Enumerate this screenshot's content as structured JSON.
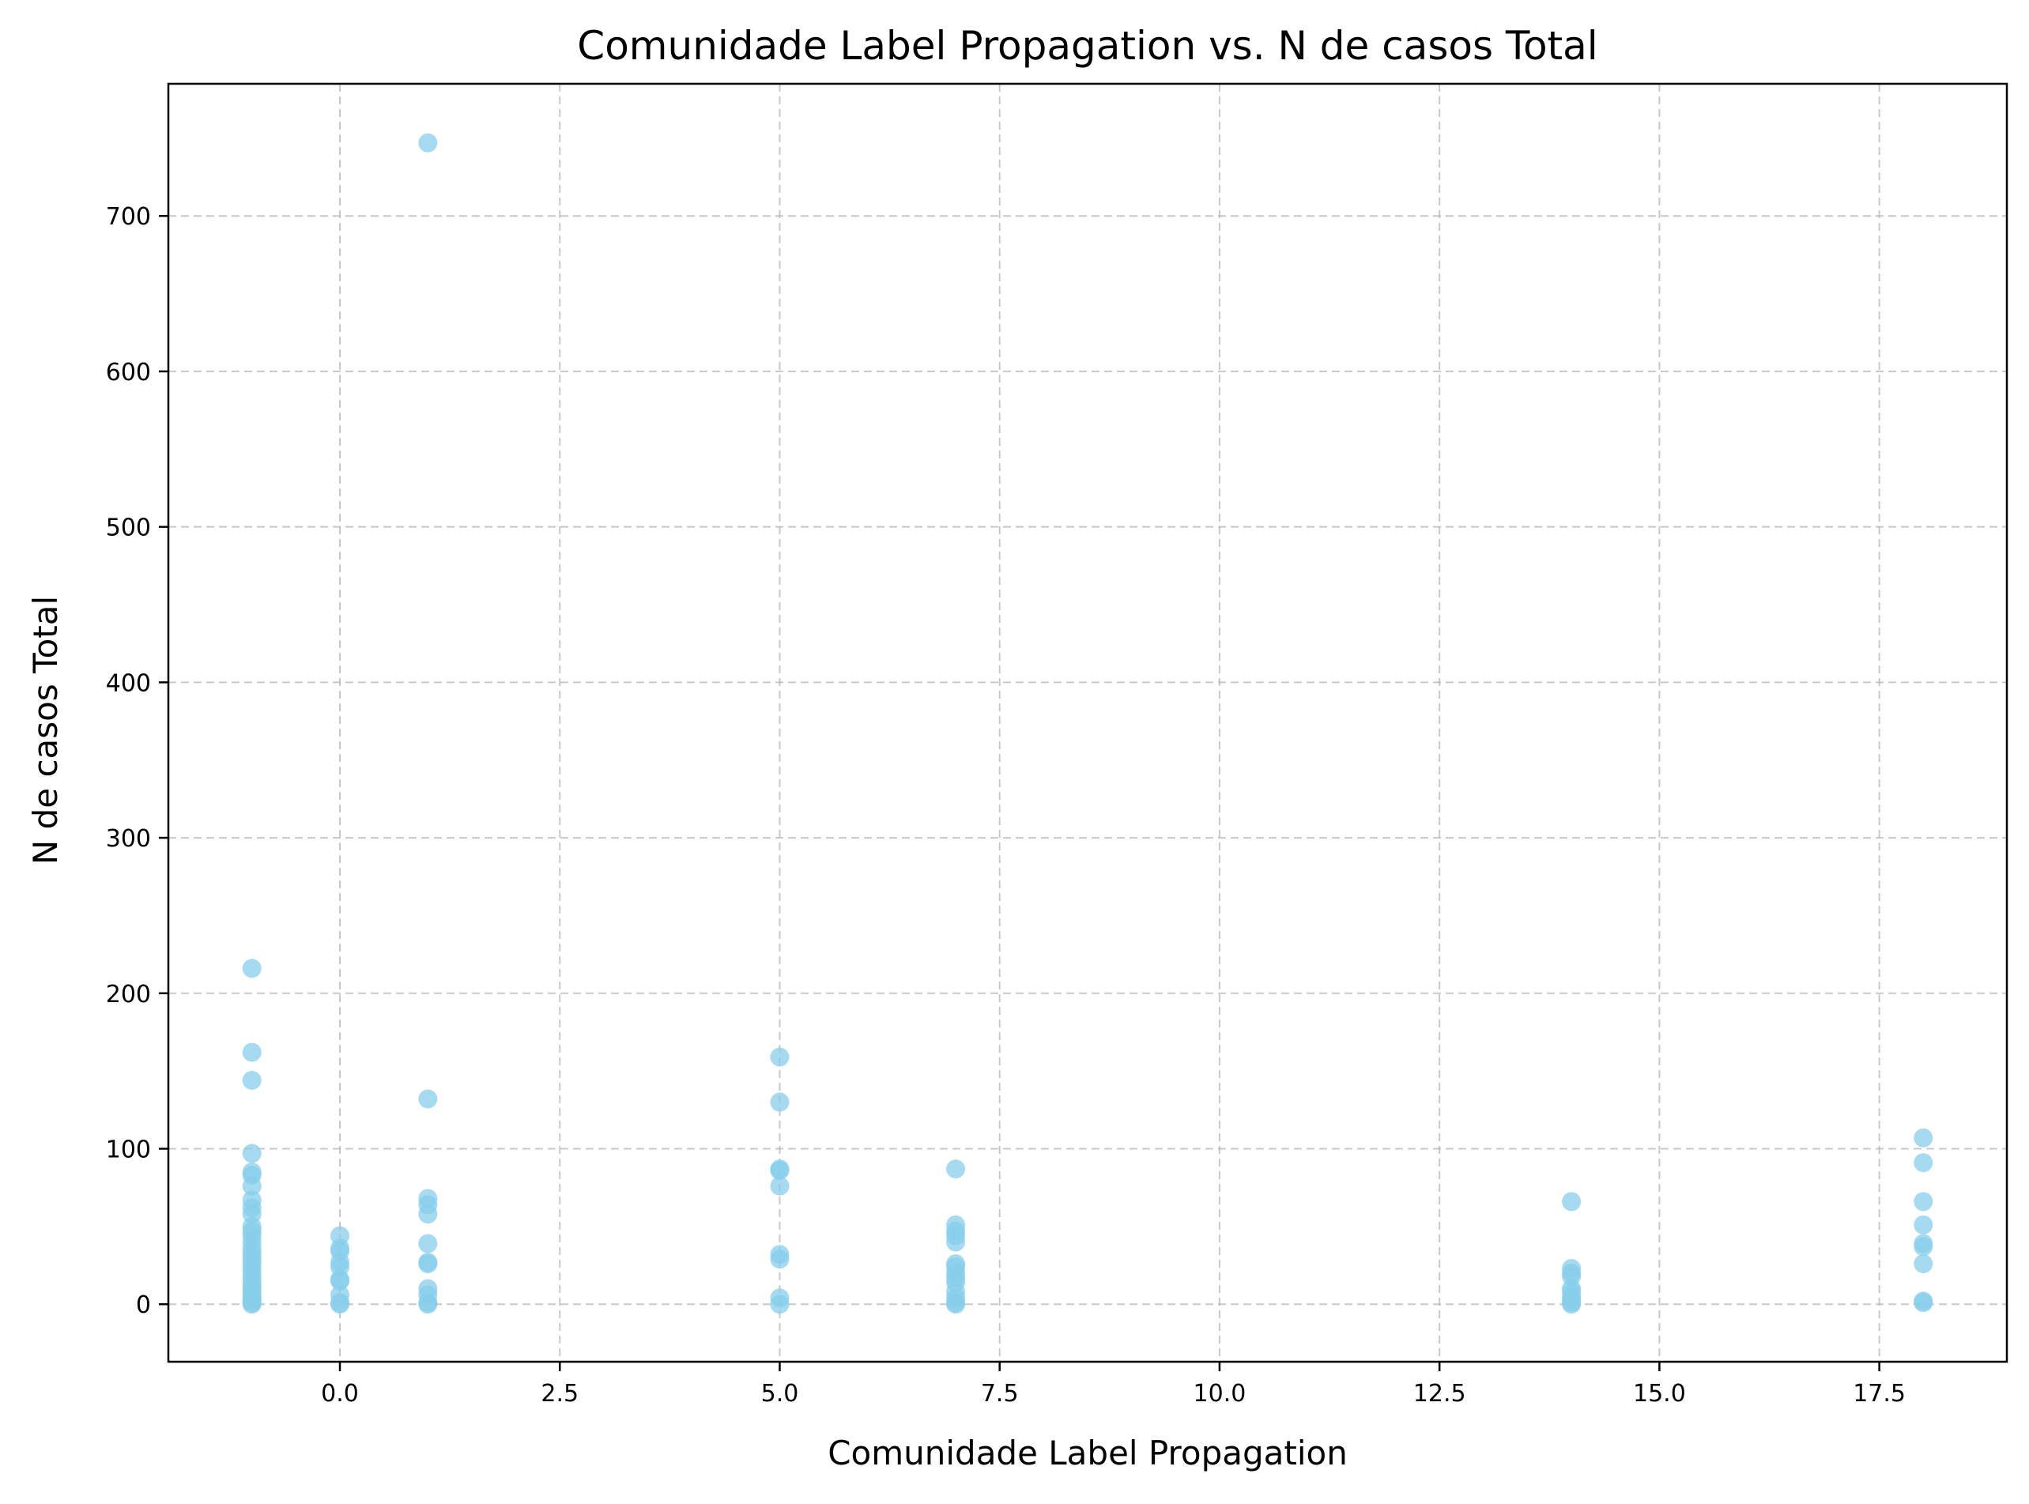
{
  "chart_data": {
    "type": "scatter",
    "title": "Comunidade Label Propagation vs. N de casos Total",
    "xlabel": "Comunidade Label Propagation",
    "ylabel": "N de casos Total",
    "xlim": [
      -1.95,
      18.95
    ],
    "ylim": [
      -37,
      785
    ],
    "x_ticks": [
      0,
      2.5,
      5,
      7.5,
      10,
      12.5,
      15,
      17.5
    ],
    "x_tick_labels": [
      "0.0",
      "2.5",
      "5.0",
      "7.5",
      "10.0",
      "12.5",
      "15.0",
      "17.5"
    ],
    "y_ticks": [
      0,
      100,
      200,
      300,
      400,
      500,
      600,
      700
    ],
    "y_tick_labels": [
      "0",
      "100",
      "200",
      "300",
      "400",
      "500",
      "600",
      "700"
    ],
    "grid": true,
    "grid_style": "dashed",
    "marker_color": "#87ceeb",
    "marker_alpha": 0.75,
    "x": [
      -1,
      -1,
      -1,
      -1,
      -1,
      -1,
      -1,
      -1,
      -1,
      -1,
      -1,
      -1,
      -1,
      -1,
      -1,
      -1,
      -1,
      -1,
      -1,
      -1,
      -1,
      -1,
      -1,
      -1,
      -1,
      -1,
      -1,
      -1,
      -1,
      -1,
      -1,
      0,
      0,
      0,
      0,
      0,
      0,
      0,
      0,
      0,
      0,
      1,
      1,
      1,
      1,
      1,
      1,
      1,
      1,
      1,
      1,
      1,
      1,
      5,
      5,
      5,
      5,
      5,
      5,
      5,
      5,
      5,
      7,
      7,
      7,
      7,
      7,
      7,
      7,
      7,
      7,
      7,
      7,
      7,
      7,
      7,
      14,
      14,
      14,
      14,
      14,
      14,
      14,
      14,
      14,
      14,
      18,
      18,
      18,
      18,
      18,
      18,
      18,
      18,
      18
    ],
    "y": [
      216,
      162,
      144,
      97,
      85,
      83,
      76,
      67,
      62,
      58,
      50,
      47,
      44,
      40,
      36,
      33,
      30,
      27,
      24,
      21,
      18,
      15,
      12,
      10,
      8,
      6,
      4,
      3,
      2,
      1,
      0,
      44,
      36,
      34,
      27,
      24,
      16,
      15,
      6,
      1,
      0,
      747,
      132,
      68,
      64,
      58,
      39,
      27,
      26,
      10,
      6,
      1,
      0,
      159,
      130,
      87,
      86,
      76,
      32,
      29,
      4,
      0,
      87,
      51,
      47,
      44,
      40,
      26,
      24,
      20,
      17,
      14,
      8,
      4,
      1,
      0,
      66,
      23,
      20,
      18,
      10,
      8,
      5,
      3,
      1,
      0,
      107,
      91,
      66,
      51,
      39,
      37,
      26,
      2,
      1
    ]
  }
}
